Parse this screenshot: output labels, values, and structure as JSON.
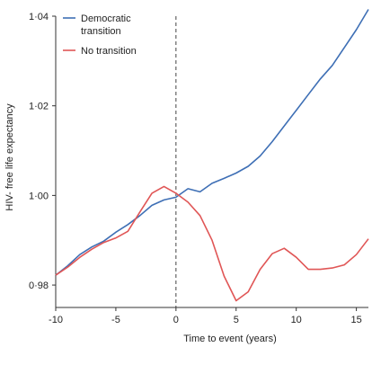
{
  "chart_data": {
    "type": "line",
    "title": "",
    "xlabel": "Time to event (years)",
    "ylabel": "HIV- free life expectancy",
    "xlim": [
      -10,
      16
    ],
    "ylim": [
      0.975,
      1.04
    ],
    "x_ticks": [
      -10,
      -5,
      0,
      5,
      10,
      15
    ],
    "x_tick_labels": [
      "-10",
      "-5",
      "0",
      "5",
      "10",
      "15"
    ],
    "y_ticks": [
      0.98,
      1.0,
      1.02,
      1.04
    ],
    "y_tick_labels": [
      "0·98",
      "1·00",
      "1·02",
      "1·04"
    ],
    "reference_line_x": 0,
    "grid": false,
    "legend_position": "top-left",
    "series": [
      {
        "name": "Democratic transition",
        "color": "#3e6fb5",
        "points": [
          [
            -10,
            0.9822
          ],
          [
            -9,
            0.9843
          ],
          [
            -8,
            0.9868
          ],
          [
            -7,
            0.9885
          ],
          [
            -6,
            0.9898
          ],
          [
            -5,
            0.9918
          ],
          [
            -4,
            0.9935
          ],
          [
            -3,
            0.9955
          ],
          [
            -2,
            0.9978
          ],
          [
            -1,
            0.999
          ],
          [
            0,
            0.9996
          ],
          [
            1,
            1.0015
          ],
          [
            2,
            1.0008
          ],
          [
            3,
            1.0027
          ],
          [
            4,
            1.0038
          ],
          [
            5,
            1.005
          ],
          [
            6,
            1.0065
          ],
          [
            7,
            1.0088
          ],
          [
            8,
            1.012
          ],
          [
            9,
            1.0155
          ],
          [
            10,
            1.019
          ],
          [
            11,
            1.0225
          ],
          [
            12,
            1.026
          ],
          [
            13,
            1.029
          ],
          [
            14,
            1.033
          ],
          [
            15,
            1.037
          ],
          [
            16,
            1.0415
          ]
        ]
      },
      {
        "name": "No transition",
        "color": "#e05656",
        "points": [
          [
            -10,
            0.9822
          ],
          [
            -9,
            0.984
          ],
          [
            -8,
            0.9862
          ],
          [
            -7,
            0.988
          ],
          [
            -6,
            0.9895
          ],
          [
            -5,
            0.9905
          ],
          [
            -4,
            0.992
          ],
          [
            -3,
            0.9963
          ],
          [
            -2,
            1.0005
          ],
          [
            -1,
            1.002
          ],
          [
            0,
            1.0005
          ],
          [
            1,
            0.9985
          ],
          [
            2,
            0.9955
          ],
          [
            3,
            0.99
          ],
          [
            4,
            0.982
          ],
          [
            5,
            0.9765
          ],
          [
            6,
            0.9785
          ],
          [
            7,
            0.9835
          ],
          [
            8,
            0.987
          ],
          [
            9,
            0.9882
          ],
          [
            10,
            0.9862
          ],
          [
            11,
            0.9835
          ],
          [
            12,
            0.9835
          ],
          [
            13,
            0.9838
          ],
          [
            14,
            0.9845
          ],
          [
            15,
            0.9868
          ],
          [
            16,
            0.9903
          ]
        ]
      }
    ]
  }
}
